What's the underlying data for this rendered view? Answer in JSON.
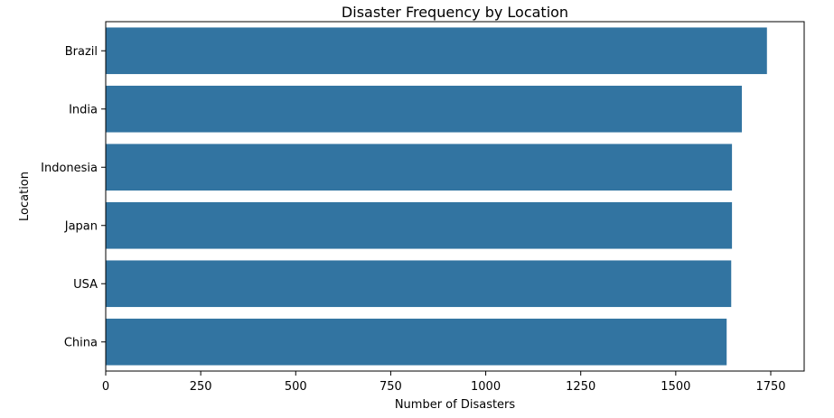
{
  "chart_data": {
    "type": "bar",
    "orientation": "horizontal",
    "title": "Disaster Frequency by Location",
    "xlabel": "Number of Disasters",
    "ylabel": "Location",
    "categories": [
      "Brazil",
      "India",
      "Indonesia",
      "Japan",
      "USA",
      "China"
    ],
    "values": [
      1740,
      1674,
      1648,
      1648,
      1646,
      1634
    ],
    "xlim": [
      0,
      1838
    ],
    "xticks": [
      0,
      250,
      500,
      750,
      1000,
      1250,
      1500,
      1750
    ],
    "xtick_labels": [
      "0",
      "250",
      "500",
      "750",
      "1000",
      "1250",
      "1500",
      "1750"
    ],
    "grid": false,
    "legend": "none",
    "bar_color": "#3274a1",
    "axis_color": "#000000"
  }
}
